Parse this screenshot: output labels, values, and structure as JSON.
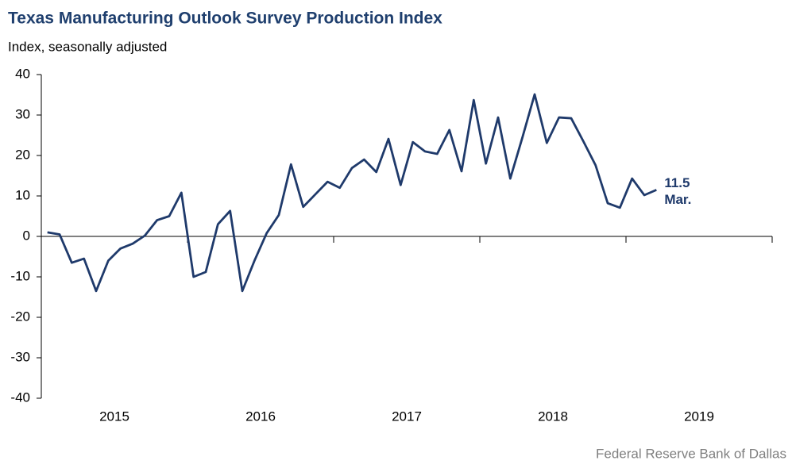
{
  "chart_data": {
    "type": "line",
    "title": "Texas Manufacturing Outlook Survey Production Index",
    "subtitle": "Index, seasonally adjusted",
    "source": "Federal Reserve Bank of Dallas",
    "x": [
      2015.0417,
      2015.125,
      2015.2083,
      2015.2917,
      2015.375,
      2015.4583,
      2015.5417,
      2015.625,
      2015.7083,
      2015.7917,
      2015.875,
      2015.9583,
      2016.0417,
      2016.125,
      2016.2083,
      2016.2917,
      2016.375,
      2016.4583,
      2016.5417,
      2016.625,
      2016.7083,
      2016.7917,
      2016.875,
      2016.9583,
      2017.0417,
      2017.125,
      2017.2083,
      2017.2917,
      2017.375,
      2017.4583,
      2017.5417,
      2017.625,
      2017.7083,
      2017.7917,
      2017.875,
      2017.9583,
      2018.0417,
      2018.125,
      2018.2083,
      2018.2917,
      2018.375,
      2018.4583,
      2018.5417,
      2018.625,
      2018.7083,
      2018.7917,
      2018.875,
      2018.9583,
      2019.0417,
      2019.125,
      2019.2083
    ],
    "series": [
      {
        "name": "Production Index",
        "color": "#1f3a6b",
        "values": [
          1.0,
          0.5,
          -6.5,
          -5.5,
          -13.5,
          -6,
          -3,
          -1.8,
          0.2,
          4,
          5,
          10.8,
          -10,
          -8.8,
          3,
          6.3,
          -13.5,
          -6,
          0.8,
          5.3,
          17.8,
          7.3,
          10.4,
          13.5,
          12,
          16.9,
          19,
          15.9,
          24.1,
          12.7,
          23.3,
          21,
          20.4,
          26.3,
          16.1,
          33.7,
          18,
          29.4,
          14.3,
          24.5,
          35.1,
          23.1,
          29.4,
          29.2,
          23.5,
          17.6,
          8.2,
          7.1,
          14.3,
          10.2,
          11.5
        ]
      }
    ],
    "last_value_label": "11.5",
    "last_month_label": "Mar.",
    "xlim": [
      2015,
      2020
    ],
    "xticks": [
      2015,
      2016,
      2017,
      2018,
      2019,
      2020
    ],
    "xlabels": [
      {
        "value": 2015.5,
        "label": "2015"
      },
      {
        "value": 2016.5,
        "label": "2016"
      },
      {
        "value": 2017.5,
        "label": "2017"
      },
      {
        "value": 2018.5,
        "label": "2018"
      },
      {
        "value": 2019.5,
        "label": "2019"
      }
    ],
    "ylim": [
      -40,
      40
    ],
    "yticks": [
      -40,
      -30,
      -20,
      -10,
      0,
      10,
      20,
      30,
      40
    ],
    "grid": false
  }
}
